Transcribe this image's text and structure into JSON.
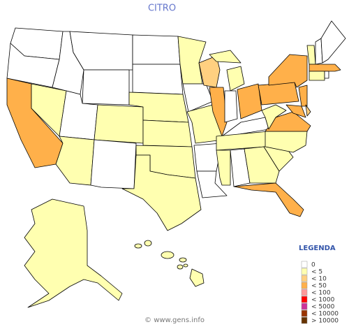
{
  "title": "CITRO",
  "legend": {
    "title": "LEGENDA",
    "entries": [
      {
        "label": "0",
        "color": "#ffffff"
      },
      {
        "label": "< 5",
        "color": "#ffffb0"
      },
      {
        "label": "< 10",
        "color": "#ffd080"
      },
      {
        "label": "< 50",
        "color": "#ffb04a"
      },
      {
        "label": "< 100",
        "color": "#ff9a9a"
      },
      {
        "label": "< 1000",
        "color": "#ff0000"
      },
      {
        "label": "< 5000",
        "color": "#cc3399"
      },
      {
        "label": "< 10000",
        "color": "#993300"
      },
      {
        "label": "> 10000",
        "color": "#663300"
      }
    ]
  },
  "footer": "© www.gens.info"
}
